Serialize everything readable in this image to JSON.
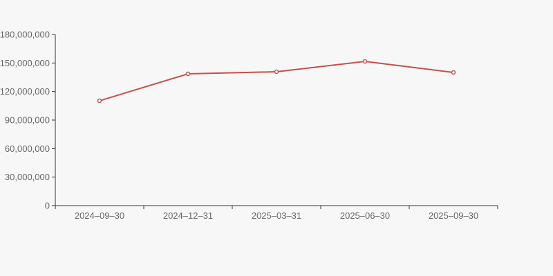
{
  "chart_data": {
    "type": "line",
    "title": "",
    "xlabel": "",
    "ylabel": "",
    "categories": [
      "2024–09–30",
      "2024–12–31",
      "2025–03–31",
      "2025–06–30",
      "2025–09–30"
    ],
    "values": [
      110300000,
      138600000,
      140800000,
      151700000,
      140100000
    ],
    "series": [
      {
        "name": "",
        "values": [
          110300000,
          138600000,
          140800000,
          151700000,
          140100000
        ]
      }
    ],
    "ylim": [
      0,
      180000000
    ],
    "y_tick_step": 30000000,
    "y_tick_labels": [
      "0",
      "30,000,000",
      "60,000,000",
      "90,000,000",
      "120,000,000",
      "150,000,000",
      "180,000,000"
    ],
    "grid": false,
    "legend_position": "none",
    "marker": "hollow-circle",
    "colors": {
      "line": "#c5504b",
      "marker_fill": "#ffffff",
      "axis": "#333333",
      "tick_label": "#666666",
      "background": "#f7f7f7"
    }
  }
}
